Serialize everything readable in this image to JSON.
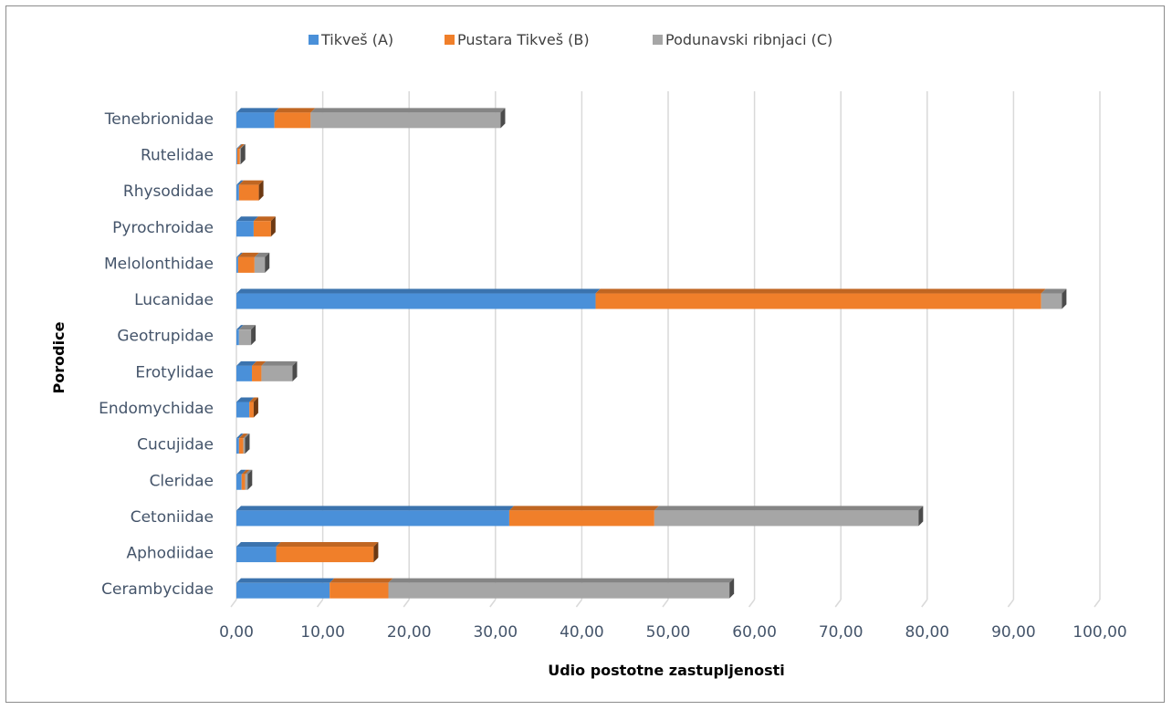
{
  "chart_data": {
    "type": "bar",
    "orientation": "horizontal",
    "stacked": true,
    "categories": [
      "Cerambycidae",
      "Aphodiidae",
      "Cetoniidae",
      "Cleridae",
      "Cucujidae",
      "Endomychidae",
      "Erotylidae",
      "Geotrupidae",
      "Lucanidae",
      "Melolonthidae",
      "Pyrochroidae",
      "Rhysodidae",
      "Rutelidae",
      "Tenebrionidae"
    ],
    "series": [
      {
        "name": "Tikveš (A)",
        "color": "#4a90d9",
        "values": [
          10.8,
          4.6,
          31.6,
          0.6,
          0.3,
          1.5,
          1.8,
          0.3,
          41.6,
          0.2,
          2.0,
          0.3,
          0.1,
          4.4
        ]
      },
      {
        "name": "Pustara Tikveš (B)",
        "color": "#f07f2a",
        "values": [
          6.8,
          11.3,
          16.8,
          0.4,
          0.5,
          0.5,
          1.1,
          0.0,
          51.6,
          1.9,
          2.0,
          2.3,
          0.3,
          4.2
        ]
      },
      {
        "name": "Podunavski ribnjaci (C)",
        "color": "#a6a6a6",
        "values": [
          39.5,
          0.0,
          30.6,
          0.3,
          0.2,
          0.0,
          3.6,
          1.4,
          2.4,
          1.2,
          0.0,
          0.0,
          0.1,
          22.0
        ]
      }
    ],
    "xlabel": "Udio postotne zastupljenosti",
    "ylabel": "Porodice",
    "xlim": [
      0,
      100
    ],
    "xticks": [
      "0,00",
      "10,00",
      "20,00",
      "30,00",
      "40,00",
      "50,00",
      "60,00",
      "70,00",
      "80,00",
      "90,00",
      "100,00"
    ],
    "grid": true,
    "legend_position": "top"
  }
}
